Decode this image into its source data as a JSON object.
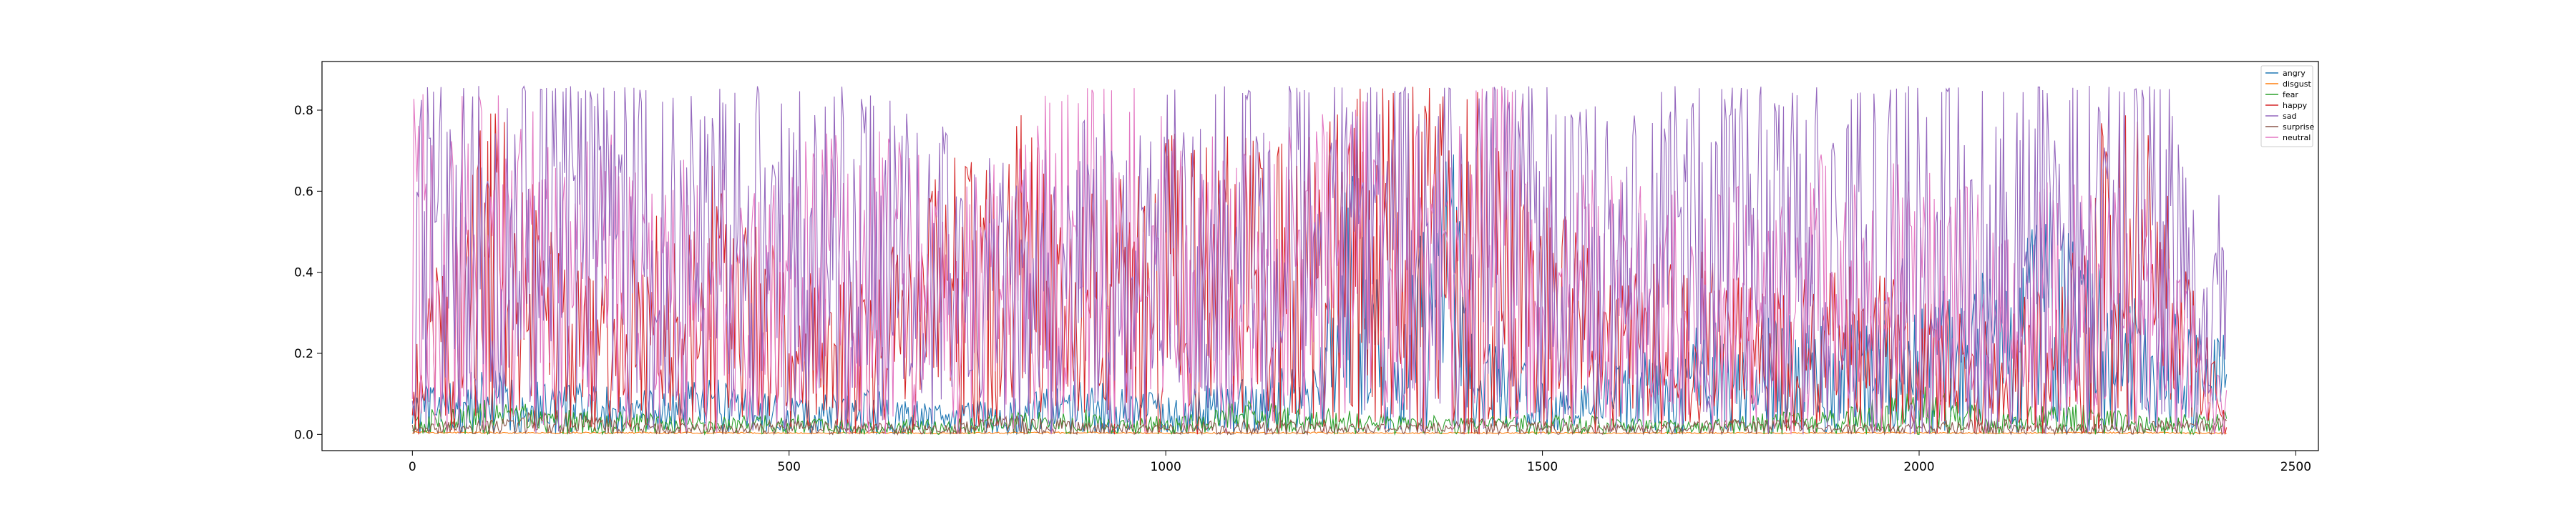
{
  "chart_data": {
    "type": "line",
    "title": "",
    "xlabel": "",
    "ylabel": "",
    "xlim": [
      -120,
      2530
    ],
    "ylim": [
      -0.04,
      0.92
    ],
    "x_ticks": [
      0,
      500,
      1000,
      1500,
      2000,
      2500
    ],
    "y_ticks": [
      0.0,
      0.2,
      0.4,
      0.6,
      0.8
    ],
    "x_tick_labels": [
      "0",
      "500",
      "1000",
      "1500",
      "2000",
      "2500"
    ],
    "y_tick_labels": [
      "0.0",
      "0.2",
      "0.4",
      "0.6",
      "0.8"
    ],
    "n_points": 2410,
    "grid": false,
    "legend_position": "upper right",
    "series": [
      {
        "name": "angry",
        "color": "#1f77b4",
        "x": [
          0,
          100,
          200,
          300,
          400,
          500,
          600,
          700,
          800,
          900,
          1000,
          1100,
          1200,
          1250,
          1300,
          1380,
          1400,
          1500,
          1600,
          1700,
          1750,
          1800,
          1900,
          2000,
          2100,
          2200,
          2250,
          2300,
          2409
        ],
        "y": [
          0.12,
          0.18,
          0.14,
          0.12,
          0.15,
          0.1,
          0.12,
          0.08,
          0.1,
          0.15,
          0.12,
          0.15,
          0.2,
          0.85,
          0.2,
          0.87,
          0.3,
          0.15,
          0.2,
          0.28,
          0.3,
          0.32,
          0.3,
          0.35,
          0.45,
          0.7,
          0.4,
          0.35,
          0.27
        ]
      },
      {
        "name": "disgust",
        "color": "#ff7f0e",
        "x": [
          0,
          100,
          200,
          300,
          400,
          500,
          600,
          700,
          800,
          900,
          1000,
          1100,
          1200,
          1300,
          1400,
          1500,
          1600,
          1700,
          1800,
          1900,
          2000,
          2100,
          2200,
          2300,
          2409
        ],
        "y": [
          0.005,
          0.004,
          0.004,
          0.004,
          0.004,
          0.003,
          0.004,
          0.003,
          0.004,
          0.004,
          0.003,
          0.004,
          0.004,
          0.003,
          0.004,
          0.004,
          0.003,
          0.004,
          0.003,
          0.004,
          0.004,
          0.003,
          0.004,
          0.004,
          0.003
        ]
      },
      {
        "name": "fear",
        "color": "#2ca02c",
        "x": [
          0,
          100,
          200,
          300,
          400,
          500,
          600,
          700,
          800,
          900,
          1000,
          1100,
          1200,
          1300,
          1400,
          1500,
          1600,
          1700,
          1800,
          1900,
          2000,
          2100,
          2200,
          2300,
          2409
        ],
        "y": [
          0.05,
          0.08,
          0.06,
          0.05,
          0.04,
          0.05,
          0.03,
          0.04,
          0.05,
          0.06,
          0.04,
          0.08,
          0.06,
          0.05,
          0.04,
          0.05,
          0.04,
          0.03,
          0.05,
          0.06,
          0.12,
          0.05,
          0.08,
          0.04,
          0.06
        ]
      },
      {
        "name": "happy",
        "color": "#d62728",
        "x": [
          0,
          100,
          200,
          300,
          400,
          500,
          600,
          700,
          800,
          900,
          1000,
          1100,
          1150,
          1200,
          1300,
          1400,
          1500,
          1600,
          1700,
          1800,
          1900,
          2000,
          2100,
          2200,
          2250,
          2300,
          2409
        ],
        "y": [
          0.15,
          0.75,
          0.35,
          0.4,
          0.55,
          0.35,
          0.3,
          0.63,
          0.65,
          0.5,
          0.6,
          0.62,
          0.69,
          0.6,
          0.75,
          0.72,
          0.5,
          0.3,
          0.4,
          0.3,
          0.35,
          0.3,
          0.25,
          0.35,
          0.7,
          0.65,
          0.06
        ]
      },
      {
        "name": "sad",
        "color": "#9467bd",
        "x": [
          0,
          100,
          200,
          300,
          400,
          500,
          600,
          700,
          800,
          900,
          1000,
          1100,
          1200,
          1300,
          1400,
          1460,
          1500,
          1600,
          1700,
          1800,
          1900,
          2000,
          2100,
          2150,
          2200,
          2300,
          2409
        ],
        "y": [
          0.7,
          0.75,
          0.85,
          0.72,
          0.68,
          0.7,
          0.65,
          0.6,
          0.5,
          0.6,
          0.65,
          0.7,
          0.75,
          0.8,
          0.7,
          0.87,
          0.7,
          0.6,
          0.75,
          0.7,
          0.65,
          0.78,
          0.7,
          0.85,
          0.82,
          0.8,
          0.42
        ]
      },
      {
        "name": "surprise",
        "color": "#8c564b",
        "x": [
          0,
          100,
          200,
          300,
          400,
          500,
          600,
          700,
          800,
          900,
          1000,
          1100,
          1200,
          1300,
          1400,
          1500,
          1600,
          1700,
          1800,
          1900,
          2000,
          2100,
          2200,
          2300,
          2409
        ],
        "y": [
          0.03,
          0.05,
          0.08,
          0.04,
          0.03,
          0.05,
          0.04,
          0.03,
          0.06,
          0.04,
          0.03,
          0.05,
          0.04,
          0.03,
          0.05,
          0.04,
          0.03,
          0.04,
          0.05,
          0.03,
          0.04,
          0.05,
          0.03,
          0.04,
          0.05
        ]
      },
      {
        "name": "neutral",
        "color": "#e377c2",
        "x": [
          0,
          100,
          200,
          300,
          400,
          500,
          600,
          700,
          800,
          900,
          1000,
          1100,
          1200,
          1300,
          1400,
          1420,
          1500,
          1600,
          1700,
          1800,
          1900,
          2000,
          2100,
          2200,
          2300,
          2409
        ],
        "y": [
          0.7,
          0.65,
          0.6,
          0.55,
          0.5,
          0.55,
          0.6,
          0.5,
          0.55,
          0.83,
          0.6,
          0.55,
          0.6,
          0.65,
          0.6,
          0.88,
          0.55,
          0.5,
          0.45,
          0.5,
          0.55,
          0.5,
          0.45,
          0.5,
          0.45,
          0.1
        ]
      }
    ]
  }
}
